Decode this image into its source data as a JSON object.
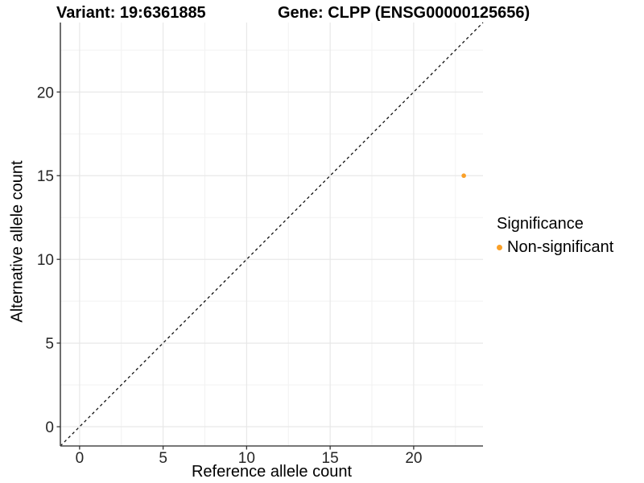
{
  "header": {
    "variant_title": "Variant: 19:6361885",
    "gene_title": "Gene: CLPP (ENSG00000125656)"
  },
  "chart_data": {
    "type": "scatter",
    "title": "Variant: 19:6361885 / Gene: CLPP (ENSG00000125656)",
    "xlabel": "Reference allele count",
    "ylabel": "Alternative allele count",
    "xlim": [
      -1.15,
      24.15
    ],
    "ylim": [
      -1.15,
      24.15
    ],
    "x_ticks": [
      0,
      5,
      10,
      15,
      20
    ],
    "y_ticks": [
      0,
      5,
      10,
      15,
      20
    ],
    "minor_step": 2.5,
    "grid": "on",
    "identity_line": {
      "style": "dashed",
      "equation": "y = x",
      "color": "#111111"
    },
    "series": [
      {
        "name": "Non-significant",
        "color": "#FAA028",
        "points": [
          {
            "x": 23,
            "y": 15
          }
        ]
      }
    ],
    "legend": {
      "position": "right",
      "title": "Significance",
      "items": [
        {
          "label": "Non-significant",
          "color": "#FAA028"
        }
      ]
    },
    "colors": {
      "background": "#ffffff",
      "grid_major": "#e6e6e6",
      "grid_minor": "#f2f2f2",
      "axis_line": "#4a4a4a",
      "tick_mark": "#333333",
      "tick_label": "#262626",
      "point": "#FAA028"
    }
  }
}
